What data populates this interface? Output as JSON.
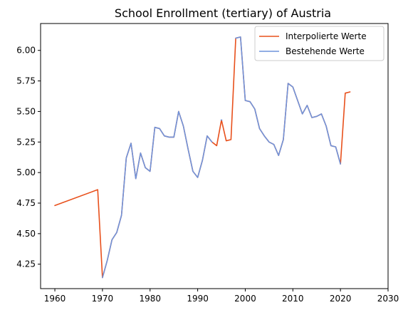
{
  "chart_data": {
    "type": "line",
    "title": "School Enrollment (tertiary) of Austria",
    "xlabel": "",
    "ylabel": "",
    "xlim": [
      1957,
      2030
    ],
    "ylim": [
      4.05,
      6.22
    ],
    "xticks": [
      1960,
      1970,
      1980,
      1990,
      2000,
      2010,
      2020,
      2030
    ],
    "yticks": [
      4.25,
      4.5,
      4.75,
      5.0,
      5.25,
      5.5,
      5.75,
      6.0
    ],
    "ytick_labels": [
      "4.25",
      "4.50",
      "4.75",
      "5.00",
      "5.25",
      "5.50",
      "5.75",
      "6.00"
    ],
    "legend_position": "top-right",
    "series": [
      {
        "name": "Interpolierte Werte",
        "color": "#e8501c",
        "points": [
          [
            1960,
            4.73
          ],
          [
            1969,
            4.86
          ],
          [
            1970,
            4.14
          ],
          [
            1971,
            4.28
          ],
          [
            1972,
            4.45
          ],
          [
            1973,
            4.51
          ],
          [
            1974,
            4.65
          ],
          [
            1975,
            5.12
          ],
          [
            1976,
            5.24
          ],
          [
            1977,
            4.95
          ],
          [
            1978,
            5.16
          ],
          [
            1979,
            5.04
          ],
          [
            1980,
            5.01
          ],
          [
            1981,
            5.37
          ],
          [
            1982,
            5.36
          ],
          [
            1983,
            5.3
          ],
          [
            1984,
            5.29
          ],
          [
            1985,
            5.29
          ],
          [
            1986,
            5.5
          ],
          [
            1987,
            5.38
          ],
          [
            1988,
            5.19
          ],
          [
            1989,
            5.01
          ],
          [
            1990,
            4.96
          ],
          [
            1991,
            5.1
          ],
          [
            1992,
            5.3
          ],
          [
            1993,
            5.25
          ],
          [
            1994,
            5.22
          ],
          [
            1995,
            5.43
          ],
          [
            1996,
            5.26
          ],
          [
            1997,
            5.27
          ],
          [
            1998,
            6.1
          ],
          [
            1999,
            6.11
          ],
          [
            2000,
            5.59
          ],
          [
            2001,
            5.58
          ],
          [
            2002,
            5.52
          ],
          [
            2003,
            5.36
          ],
          [
            2004,
            5.3
          ],
          [
            2005,
            5.25
          ],
          [
            2006,
            5.23
          ],
          [
            2007,
            5.14
          ],
          [
            2008,
            5.27
          ],
          [
            2009,
            5.73
          ],
          [
            2010,
            5.7
          ],
          [
            2011,
            5.59
          ],
          [
            2012,
            5.48
          ],
          [
            2013,
            5.55
          ],
          [
            2014,
            5.45
          ],
          [
            2015,
            5.46
          ],
          [
            2016,
            5.48
          ],
          [
            2017,
            5.38
          ],
          [
            2018,
            5.22
          ],
          [
            2019,
            5.21
          ],
          [
            2020,
            5.07
          ],
          [
            2021,
            5.65
          ],
          [
            2022,
            5.66
          ]
        ]
      },
      {
        "name": "Bestehende Werte",
        "color": "#6f94dc",
        "segments": [
          [
            [
              1970,
              4.14
            ],
            [
              1971,
              4.28
            ],
            [
              1972,
              4.45
            ],
            [
              1973,
              4.51
            ],
            [
              1974,
              4.65
            ],
            [
              1975,
              5.12
            ],
            [
              1976,
              5.24
            ],
            [
              1977,
              4.95
            ],
            [
              1978,
              5.16
            ],
            [
              1979,
              5.04
            ],
            [
              1980,
              5.01
            ],
            [
              1981,
              5.37
            ],
            [
              1982,
              5.36
            ],
            [
              1983,
              5.3
            ],
            [
              1984,
              5.29
            ],
            [
              1985,
              5.29
            ],
            [
              1986,
              5.5
            ],
            [
              1987,
              5.38
            ],
            [
              1988,
              5.19
            ],
            [
              1989,
              5.01
            ],
            [
              1990,
              4.96
            ],
            [
              1991,
              5.1
            ],
            [
              1992,
              5.3
            ],
            [
              1993,
              5.25
            ]
          ],
          [
            [
              1995,
              5.43
            ]
          ],
          [
            [
              1998,
              6.1
            ],
            [
              1999,
              6.11
            ],
            [
              2000,
              5.59
            ],
            [
              2001,
              5.58
            ],
            [
              2002,
              5.52
            ],
            [
              2003,
              5.36
            ],
            [
              2004,
              5.3
            ],
            [
              2005,
              5.25
            ],
            [
              2006,
              5.23
            ],
            [
              2007,
              5.14
            ],
            [
              2008,
              5.27
            ],
            [
              2009,
              5.73
            ],
            [
              2010,
              5.7
            ],
            [
              2011,
              5.59
            ],
            [
              2012,
              5.48
            ],
            [
              2013,
              5.55
            ],
            [
              2014,
              5.45
            ],
            [
              2015,
              5.46
            ],
            [
              2016,
              5.48
            ],
            [
              2017,
              5.38
            ],
            [
              2018,
              5.22
            ],
            [
              2019,
              5.21
            ],
            [
              2020,
              5.07
            ]
          ]
        ]
      }
    ]
  }
}
